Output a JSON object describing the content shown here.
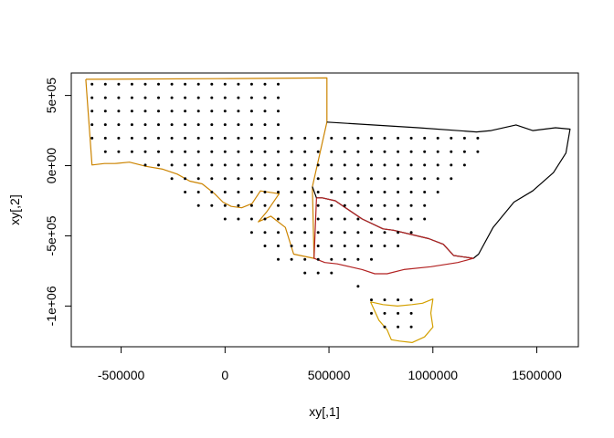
{
  "chart_data": {
    "type": "scatter",
    "xlabel": "xy[,1]",
    "ylabel": "xy[,2]",
    "xlim": [
      -740000,
      1700000
    ],
    "ylim": [
      -1290000,
      660000
    ],
    "x_ticks": [
      {
        "value": -500000,
        "label": "-500000"
      },
      {
        "value": 0,
        "label": "0"
      },
      {
        "value": 500000,
        "label": "500000"
      },
      {
        "value": 1000000,
        "label": "1000000"
      },
      {
        "value": 1500000,
        "label": "1500000"
      }
    ],
    "y_ticks": [
      {
        "value": 500000,
        "label": "5e+05"
      },
      {
        "value": 0,
        "label": "0e+00"
      },
      {
        "value": -500000,
        "label": "-5e+05"
      },
      {
        "value": -1000000,
        "label": "-1e+06"
      }
    ],
    "grid": false,
    "point_color": "#000000",
    "point_grid": {
      "x_start": -640000,
      "x_step": 64000,
      "y_start": 580000,
      "y_step": 96000
    },
    "point_rows": [
      {
        "row": 0,
        "from": 0,
        "to": 14
      },
      {
        "row": 1,
        "from": 0,
        "to": 14
      },
      {
        "row": 2,
        "from": 0,
        "to": 14
      },
      {
        "row": 3,
        "from": 0,
        "to": 14
      },
      {
        "row": 4,
        "from": 0,
        "to": 29
      },
      {
        "row": 5,
        "from": 1,
        "to": 29
      },
      {
        "row": 6,
        "from": 4,
        "to": 28
      },
      {
        "row": 7,
        "from": 6,
        "to": 27
      },
      {
        "row": 8,
        "from": 7,
        "to": 26
      },
      {
        "row": 9,
        "from": 8,
        "to": 25
      },
      {
        "row": 10,
        "from": 10,
        "to": 25
      },
      {
        "row": 11,
        "from": 12,
        "to": 24
      },
      {
        "row": 12,
        "from": 13,
        "to": 23
      },
      {
        "row": 13,
        "from": 14,
        "to": 21
      },
      {
        "row": 14,
        "from": 16,
        "to": 18
      },
      {
        "row": 15,
        "from": 20,
        "to": 20
      },
      {
        "row": 16,
        "from": 21,
        "to": 24
      },
      {
        "row": 17,
        "from": 21,
        "to": 24
      },
      {
        "row": 18,
        "from": 22,
        "to": 24
      }
    ],
    "regions": [
      {
        "name": "sa-boundary",
        "color": "#cc8400",
        "points": [
          [
            -670000,
            615000
          ],
          [
            -35000,
            620000
          ],
          [
            490000,
            625000
          ],
          [
            490000,
            310000
          ],
          [
            420000,
            -150000
          ],
          [
            428000,
            -660000
          ],
          [
            330000,
            -630000
          ],
          [
            290000,
            -440000
          ],
          [
            220000,
            -360000
          ],
          [
            160000,
            -400000
          ],
          [
            200000,
            -330000
          ],
          [
            260000,
            -200000
          ],
          [
            170000,
            -180000
          ],
          [
            130000,
            -270000
          ],
          [
            80000,
            -300000
          ],
          [
            30000,
            -290000
          ],
          [
            -10000,
            -260000
          ],
          [
            -50000,
            -200000
          ],
          [
            -110000,
            -130000
          ],
          [
            -170000,
            -110000
          ],
          [
            -230000,
            -60000
          ],
          [
            -300000,
            -25000
          ],
          [
            -380000,
            -5000
          ],
          [
            -460000,
            25000
          ],
          [
            -530000,
            15000
          ],
          [
            -580000,
            15000
          ],
          [
            -640000,
            5000
          ],
          [
            -670000,
            615000
          ]
        ]
      },
      {
        "name": "nsw-boundary",
        "color": "#000000",
        "points": [
          [
            490000,
            310000
          ],
          [
            930000,
            270000
          ],
          [
            1210000,
            240000
          ],
          [
            1280000,
            250000
          ],
          [
            1400000,
            290000
          ],
          [
            1480000,
            250000
          ],
          [
            1590000,
            270000
          ],
          [
            1660000,
            260000
          ],
          [
            1640000,
            90000
          ],
          [
            1580000,
            -50000
          ],
          [
            1480000,
            -180000
          ],
          [
            1390000,
            -260000
          ],
          [
            1290000,
            -440000
          ],
          [
            1220000,
            -630000
          ],
          [
            1195000,
            -660000
          ],
          [
            1100000,
            -640000
          ],
          [
            1050000,
            -560000
          ],
          [
            980000,
            -520000
          ],
          [
            810000,
            -460000
          ],
          [
            760000,
            -450000
          ],
          [
            660000,
            -380000
          ],
          [
            580000,
            -300000
          ],
          [
            530000,
            -250000
          ],
          [
            470000,
            -230000
          ],
          [
            440000,
            -230000
          ],
          [
            420000,
            -150000
          ]
        ]
      },
      {
        "name": "vic-boundary",
        "color": "#b22222",
        "points": [
          [
            440000,
            -230000
          ],
          [
            470000,
            -230000
          ],
          [
            530000,
            -250000
          ],
          [
            580000,
            -300000
          ],
          [
            660000,
            -380000
          ],
          [
            760000,
            -450000
          ],
          [
            810000,
            -460000
          ],
          [
            980000,
            -520000
          ],
          [
            1050000,
            -560000
          ],
          [
            1100000,
            -640000
          ],
          [
            1195000,
            -660000
          ],
          [
            1120000,
            -690000
          ],
          [
            990000,
            -720000
          ],
          [
            860000,
            -740000
          ],
          [
            780000,
            -770000
          ],
          [
            720000,
            -770000
          ],
          [
            660000,
            -740000
          ],
          [
            600000,
            -720000
          ],
          [
            540000,
            -700000
          ],
          [
            480000,
            -690000
          ],
          [
            428000,
            -660000
          ],
          [
            440000,
            -230000
          ]
        ]
      },
      {
        "name": "tas-outline",
        "color": "#d4a000",
        "points": [
          [
            700000,
            -970000
          ],
          [
            760000,
            -990000
          ],
          [
            830000,
            -1000000
          ],
          [
            900000,
            -990000
          ],
          [
            950000,
            -980000
          ],
          [
            1000000,
            -950000
          ],
          [
            990000,
            -1050000
          ],
          [
            1000000,
            -1150000
          ],
          [
            960000,
            -1220000
          ],
          [
            900000,
            -1260000
          ],
          [
            840000,
            -1250000
          ],
          [
            800000,
            -1240000
          ],
          [
            780000,
            -1170000
          ],
          [
            740000,
            -1100000
          ],
          [
            700000,
            -970000
          ]
        ]
      }
    ]
  }
}
